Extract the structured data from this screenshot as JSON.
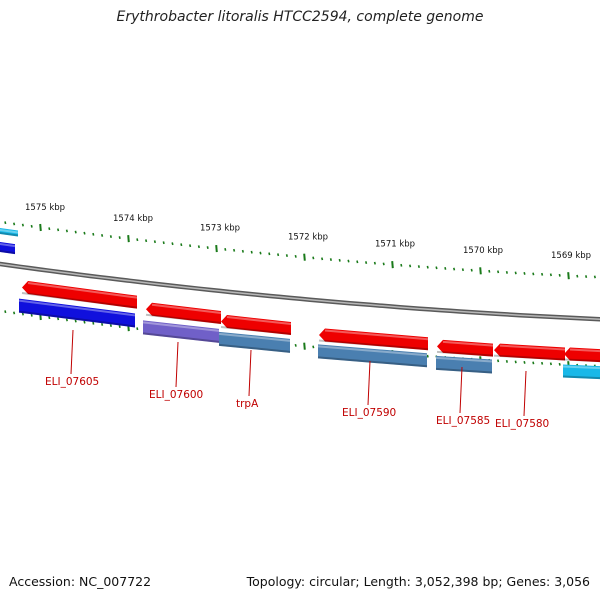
{
  "title": "Erythrobacter litoralis HTCC2594, complete genome",
  "footer": {
    "accession": "Accession: NC_007722",
    "stats": "Topology: circular; Length: 3,052,398 bp; Genes: 3,056"
  },
  "colors": {
    "forward_gene": "#ee0000",
    "reverse_cds": "#1010dd",
    "reverse_purple": "#7060c8",
    "reverse_steel": "#4a7fb0",
    "reverse_cyan": "#18b8e8",
    "backbone": "#808080",
    "tick": "#1a7a1a",
    "label": "#c00000"
  },
  "scale_labels": [
    "1575 kbp",
    "1574 kbp",
    "1573 kbp",
    "1572 kbp",
    "1571 kbp",
    "1570 kbp",
    "1569 kbp"
  ],
  "gene_labels": [
    "ELI_07605",
    "ELI_07600",
    "trpA",
    "ELI_07590",
    "ELI_07585",
    "ELI_07580"
  ]
}
